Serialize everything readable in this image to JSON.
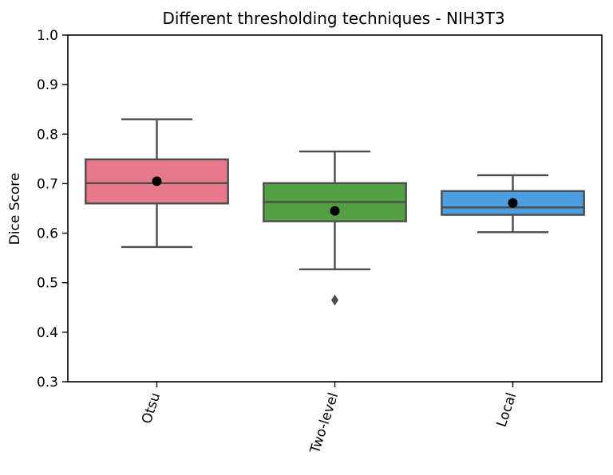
{
  "chart_data": {
    "type": "box",
    "title": "Different thresholding techniques - NIH3T3",
    "xlabel": "",
    "ylabel": "Dice Score",
    "ylim": [
      0.3,
      1.0
    ],
    "yticks": [
      "0.3",
      "0.4",
      "0.5",
      "0.6",
      "0.7",
      "0.8",
      "0.9",
      "1.0"
    ],
    "categories": [
      "Otsu",
      "Two-level",
      "Local"
    ],
    "boxes": [
      {
        "category": "Otsu",
        "whisker_low": 0.572,
        "q1": 0.66,
        "median": 0.701,
        "q3": 0.749,
        "whisker_high": 0.83,
        "mean": 0.705,
        "outliers": [],
        "color": "#e8788c"
      },
      {
        "category": "Two-level",
        "whisker_low": 0.527,
        "q1": 0.624,
        "median": 0.663,
        "q3": 0.701,
        "whisker_high": 0.765,
        "mean": 0.645,
        "outliers": [
          0.465
        ],
        "color": "#53a043"
      },
      {
        "category": "Local",
        "whisker_low": 0.602,
        "q1": 0.637,
        "median": 0.652,
        "q3": 0.685,
        "whisker_high": 0.717,
        "mean": 0.661,
        "outliers": [],
        "color": "#4b9fe0"
      }
    ],
    "grid": false,
    "legend": "none",
    "colors": {
      "line": "#4d4d4d",
      "mean_marker": "#000000",
      "axes": "#000000"
    }
  }
}
